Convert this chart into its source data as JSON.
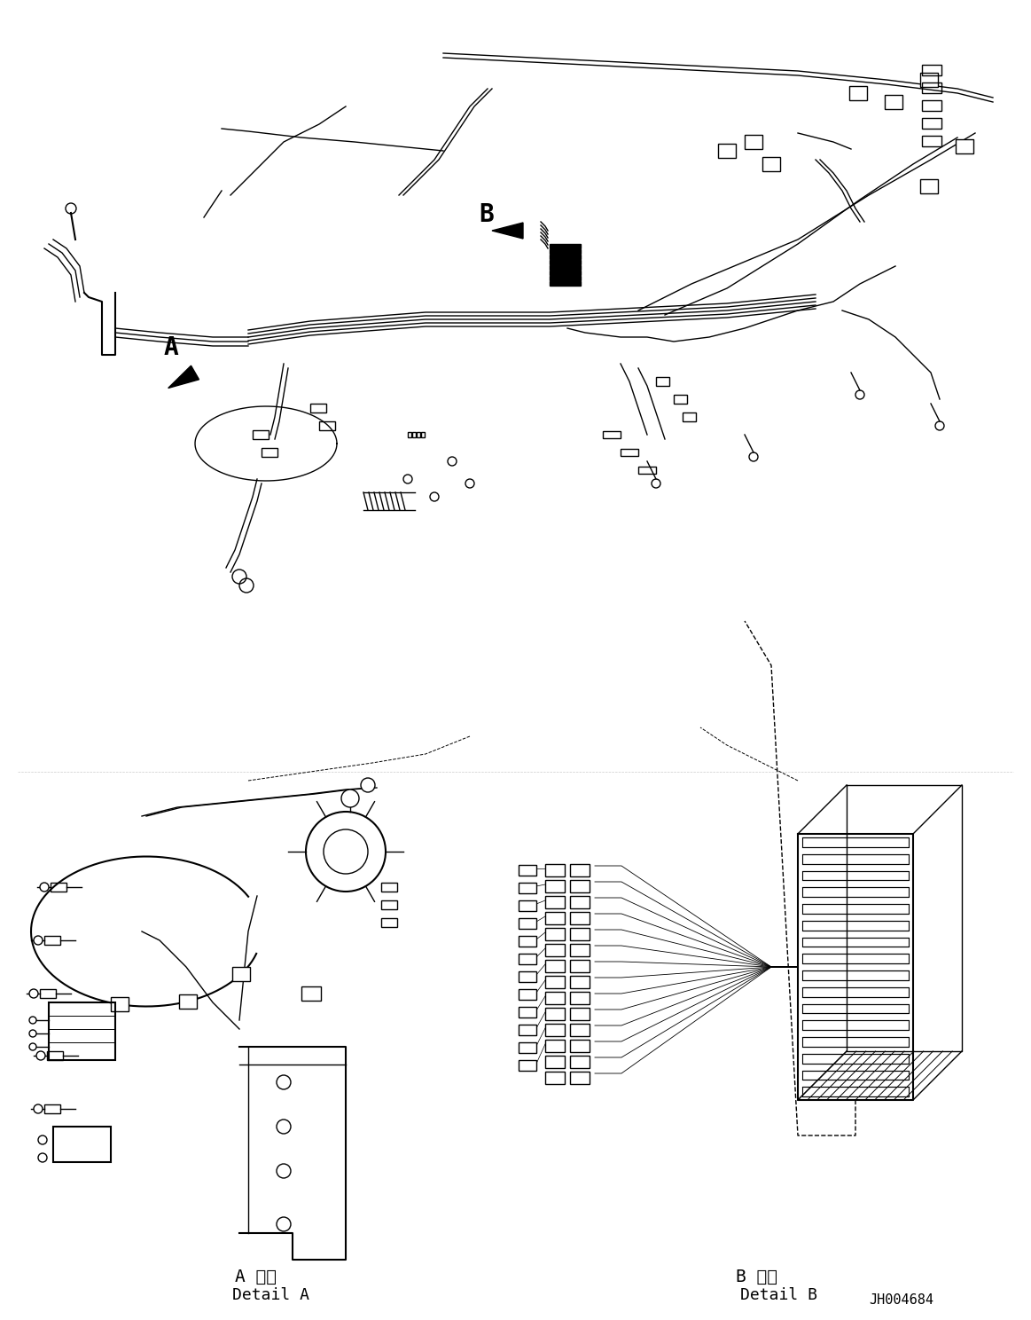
{
  "background_color": "#ffffff",
  "line_color": "#000000",
  "fig_width": 11.63,
  "fig_height": 14.88,
  "dpi": 100,
  "label_A": "A",
  "label_B": "B",
  "detail_A_jp": "A 詳細",
  "detail_A_en": "Detail A",
  "detail_B_jp": "B 詳細",
  "detail_B_en": "Detail B",
  "part_number": "JH004684",
  "font_family": "monospace"
}
